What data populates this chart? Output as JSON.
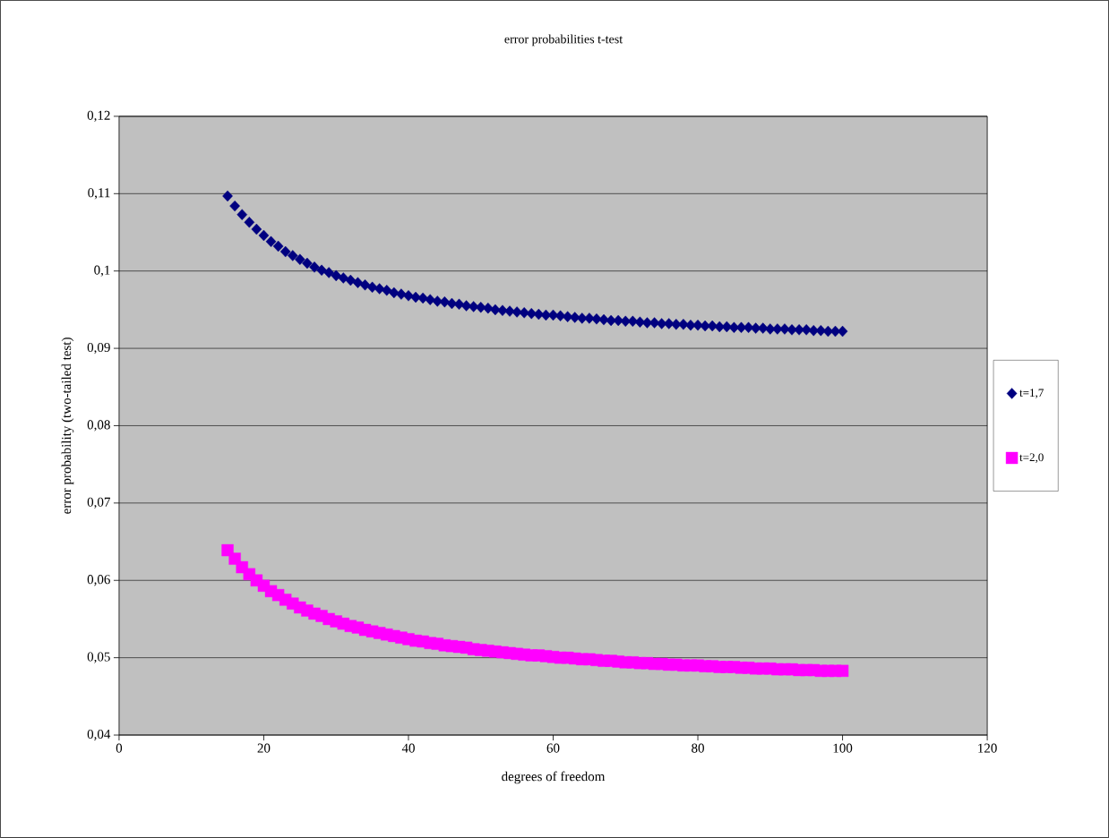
{
  "chart_data": {
    "type": "scatter",
    "title": "error probabilities t-test",
    "xlabel": "degrees of freedom",
    "ylabel": "error probability (two-tailed test)",
    "x": [
      15,
      16,
      17,
      18,
      19,
      20,
      21,
      22,
      23,
      24,
      25,
      26,
      27,
      28,
      29,
      30,
      31,
      32,
      33,
      34,
      35,
      36,
      37,
      38,
      39,
      40,
      41,
      42,
      43,
      44,
      45,
      46,
      47,
      48,
      49,
      50,
      51,
      52,
      53,
      54,
      55,
      56,
      57,
      58,
      59,
      60,
      61,
      62,
      63,
      64,
      65,
      66,
      67,
      68,
      69,
      70,
      71,
      72,
      73,
      74,
      75,
      76,
      77,
      78,
      79,
      80,
      81,
      82,
      83,
      84,
      85,
      86,
      87,
      88,
      89,
      90,
      91,
      92,
      93,
      94,
      95,
      96,
      97,
      98,
      99,
      100
    ],
    "series": [
      {
        "name": "t=1,7",
        "color": "#000080",
        "marker": "diamond",
        "values": [
          0.1097,
          0.1084,
          0.1073,
          0.1063,
          0.1054,
          0.1046,
          0.1038,
          0.1032,
          0.1025,
          0.102,
          0.1015,
          0.101,
          0.1005,
          0.1001,
          0.0998,
          0.0994,
          0.0991,
          0.0988,
          0.0985,
          0.0982,
          0.0979,
          0.0977,
          0.0975,
          0.0972,
          0.097,
          0.0968,
          0.0966,
          0.0965,
          0.0963,
          0.0961,
          0.096,
          0.0958,
          0.0957,
          0.0955,
          0.0954,
          0.0953,
          0.0952,
          0.095,
          0.0949,
          0.0948,
          0.0947,
          0.0946,
          0.0945,
          0.0944,
          0.0943,
          0.0943,
          0.0942,
          0.0941,
          0.094,
          0.0939,
          0.0939,
          0.0938,
          0.0937,
          0.0936,
          0.0936,
          0.0935,
          0.0935,
          0.0934,
          0.0933,
          0.0933,
          0.0932,
          0.0932,
          0.0931,
          0.0931,
          0.093,
          0.093,
          0.0929,
          0.0929,
          0.0928,
          0.0928,
          0.0927,
          0.0927,
          0.0927,
          0.0926,
          0.0926,
          0.0925,
          0.0925,
          0.0925,
          0.0924,
          0.0924,
          0.0924,
          0.0923,
          0.0923,
          0.0922,
          0.0922,
          0.0922
        ]
      },
      {
        "name": "t=2,0",
        "color": "#ff00ff",
        "marker": "square",
        "values": [
          0.0639,
          0.0628,
          0.0617,
          0.0608,
          0.06,
          0.0593,
          0.0586,
          0.0581,
          0.0575,
          0.057,
          0.0565,
          0.0561,
          0.0557,
          0.0554,
          0.055,
          0.0547,
          0.0544,
          0.0541,
          0.0539,
          0.0536,
          0.0534,
          0.0532,
          0.053,
          0.0528,
          0.0526,
          0.0524,
          0.0522,
          0.0521,
          0.0519,
          0.0518,
          0.0516,
          0.0515,
          0.0514,
          0.0513,
          0.0511,
          0.051,
          0.0509,
          0.0508,
          0.0507,
          0.0506,
          0.0505,
          0.0504,
          0.0503,
          0.0503,
          0.0502,
          0.0501,
          0.05,
          0.05,
          0.0499,
          0.0498,
          0.0498,
          0.0497,
          0.0496,
          0.0496,
          0.0495,
          0.0494,
          0.0494,
          0.0493,
          0.0493,
          0.0492,
          0.0492,
          0.0491,
          0.0491,
          0.049,
          0.049,
          0.049,
          0.0489,
          0.0489,
          0.0488,
          0.0488,
          0.0488,
          0.0487,
          0.0487,
          0.0486,
          0.0486,
          0.0486,
          0.0485,
          0.0485,
          0.0485,
          0.0484,
          0.0484,
          0.0484,
          0.0483,
          0.0483,
          0.0483,
          0.0483
        ]
      }
    ],
    "xlim": [
      0,
      120
    ],
    "xticks": [
      0,
      20,
      40,
      60,
      80,
      100,
      120
    ],
    "ylim": [
      0.04,
      0.12
    ],
    "yticks": [
      {
        "value": 0.04,
        "label": "0,04"
      },
      {
        "value": 0.05,
        "label": "0,05"
      },
      {
        "value": 0.06,
        "label": "0,06"
      },
      {
        "value": 0.07,
        "label": "0,07"
      },
      {
        "value": 0.08,
        "label": "0,08"
      },
      {
        "value": 0.09,
        "label": "0,09"
      },
      {
        "value": 0.1,
        "label": "0,1"
      },
      {
        "value": 0.11,
        "label": "0,11"
      },
      {
        "value": 0.12,
        "label": "0,12"
      }
    ],
    "grid": "y",
    "legend": "right"
  }
}
